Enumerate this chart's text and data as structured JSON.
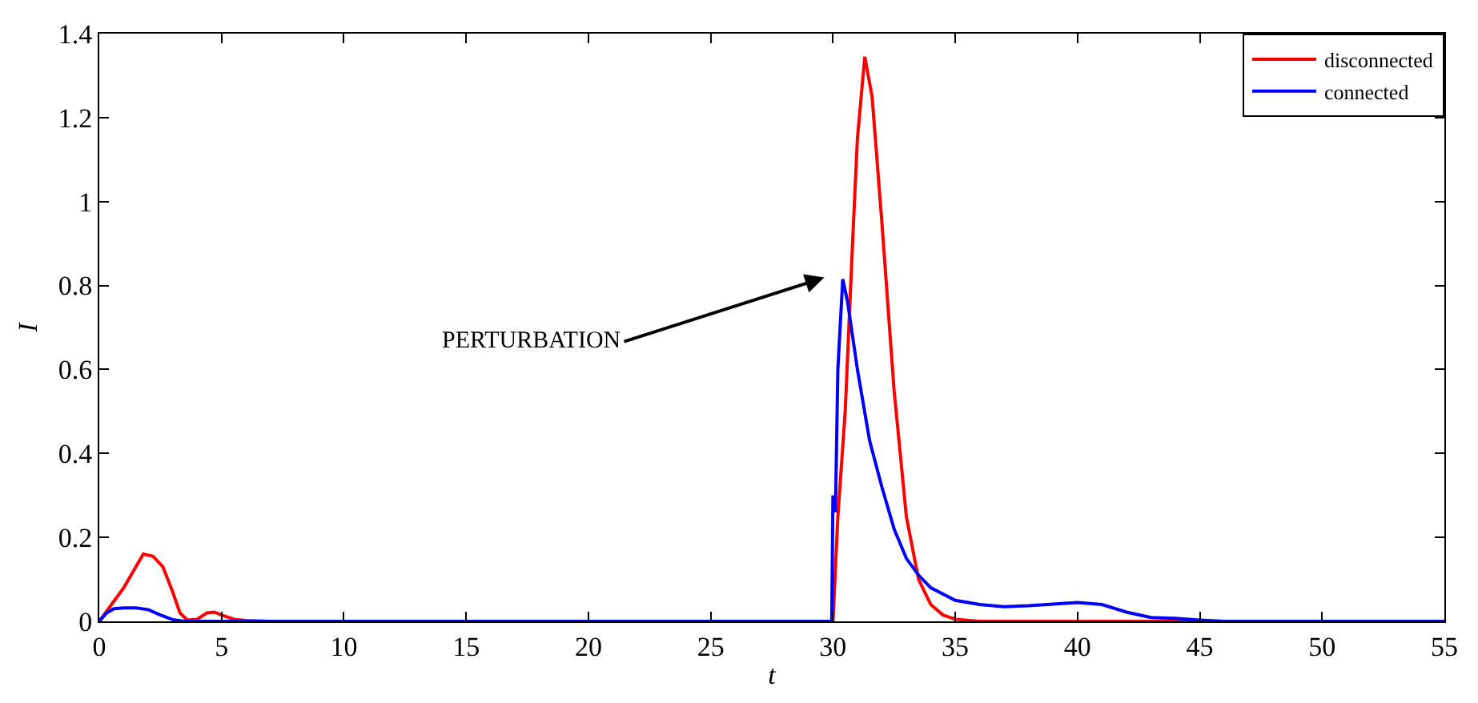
{
  "chart_data": {
    "type": "line",
    "xlabel": "t",
    "ylabel": "I",
    "xlim": [
      0,
      55
    ],
    "ylim": [
      0,
      1.4
    ],
    "xticks": [
      0,
      5,
      10,
      15,
      20,
      25,
      30,
      35,
      40,
      45,
      50,
      55
    ],
    "yticks": [
      0,
      0.2,
      0.4,
      0.6,
      0.8,
      1,
      1.2,
      1.4
    ],
    "grid": false,
    "legend": "top right",
    "marker": "none",
    "line_style": "solid",
    "annotations": [
      "PERTURBATION"
    ],
    "series": [
      {
        "name": "disconnected",
        "color": "#ff0000",
        "x": [
          0,
          0.5,
          1,
          1.5,
          1.8,
          2.2,
          2.6,
          3,
          3.3,
          3.6,
          4,
          4.4,
          4.7,
          5,
          5.5,
          6,
          7,
          10,
          20,
          29.9,
          30,
          30.2,
          30.5,
          30.8,
          31,
          31.3,
          31.6,
          32,
          32.5,
          33,
          33.5,
          34,
          34.5,
          35,
          36,
          40,
          45,
          55
        ],
        "values": [
          0,
          0.04,
          0.08,
          0.13,
          0.16,
          0.155,
          0.13,
          0.07,
          0.02,
          0.003,
          0.005,
          0.02,
          0.022,
          0.015,
          0.005,
          0.002,
          0,
          0,
          0,
          0,
          0,
          0.25,
          0.5,
          0.9,
          1.15,
          1.345,
          1.25,
          0.95,
          0.55,
          0.25,
          0.1,
          0.04,
          0.015,
          0.005,
          0,
          0,
          0,
          0
        ]
      },
      {
        "name": "connected",
        "color": "#0000ff",
        "x": [
          0,
          0.3,
          0.6,
          1,
          1.5,
          2,
          2.5,
          3,
          3.5,
          4,
          10,
          20,
          29.95,
          30,
          30.1,
          30.2,
          30.4,
          30.6,
          31,
          31.5,
          32,
          32.5,
          33,
          33.5,
          34,
          35,
          36,
          37,
          38,
          39,
          40,
          41,
          42,
          43,
          44,
          45,
          46,
          55
        ],
        "values": [
          0,
          0.02,
          0.03,
          0.032,
          0.032,
          0.028,
          0.015,
          0.004,
          0,
          0,
          0,
          0,
          0,
          0.3,
          0.26,
          0.6,
          0.815,
          0.76,
          0.6,
          0.43,
          0.32,
          0.22,
          0.15,
          0.11,
          0.08,
          0.05,
          0.04,
          0.035,
          0.037,
          0.041,
          0.045,
          0.04,
          0.022,
          0.009,
          0.007,
          0.003,
          0,
          0
        ]
      }
    ]
  }
}
